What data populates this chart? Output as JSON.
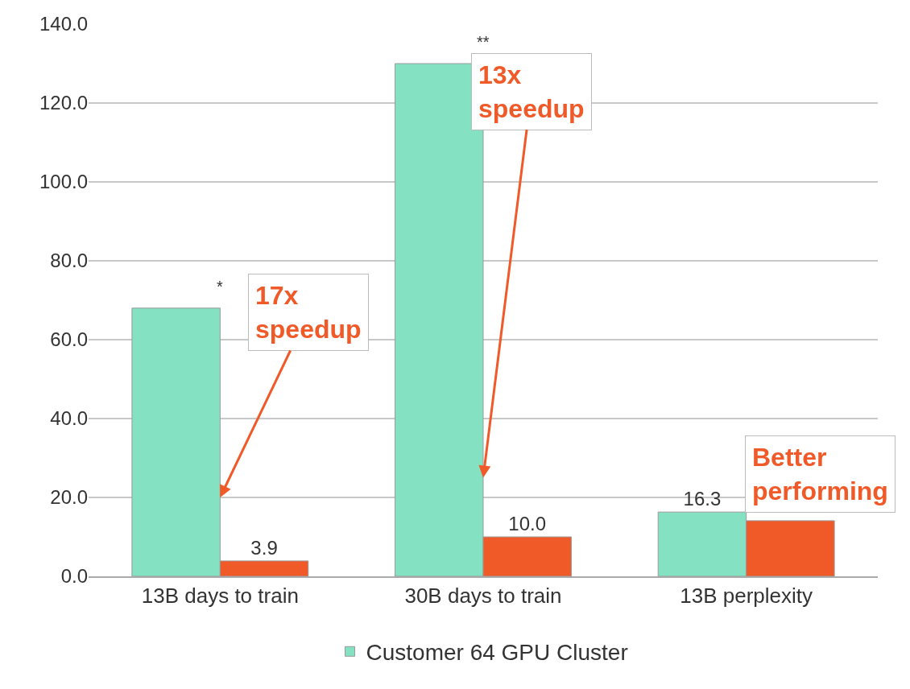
{
  "chart_data": {
    "type": "bar",
    "categories": [
      "13B days to train",
      "30B days to train",
      "13B perplexity"
    ],
    "series": [
      {
        "name": "Customer 64 GPU Cluster",
        "color": "#84e1c1",
        "values": [
          68,
          130,
          16.3
        ],
        "value_labels": [
          null,
          null,
          "16.3"
        ]
      },
      {
        "color": "#f05a28",
        "values": [
          3.9,
          10.0,
          14.1
        ],
        "value_labels": [
          "3.9",
          "10.0",
          null
        ]
      }
    ],
    "ylim": [
      0,
      140
    ],
    "yticks": [
      {
        "value": 0,
        "label": "0.0"
      },
      {
        "value": 20,
        "label": "20.0"
      },
      {
        "value": 40,
        "label": "40.0"
      },
      {
        "value": 60,
        "label": "60.0"
      },
      {
        "value": 80,
        "label": "80.0"
      },
      {
        "value": 100,
        "label": "100.0"
      },
      {
        "value": 120,
        "label": "120.0"
      },
      {
        "value": 140,
        "label": "140.0"
      }
    ],
    "grid": "y",
    "legend": "bottom",
    "annotations": [
      {
        "text": "*",
        "x": "13B days to train",
        "y": 68
      },
      {
        "text": "**",
        "x": "30B days to train",
        "y": 130
      },
      {
        "text": "17x speedup",
        "x": "13B days to train",
        "y": 20
      },
      {
        "text": "13x speedup",
        "x": "30B days to train",
        "y": 25
      },
      "Better performing"
    ]
  }
}
